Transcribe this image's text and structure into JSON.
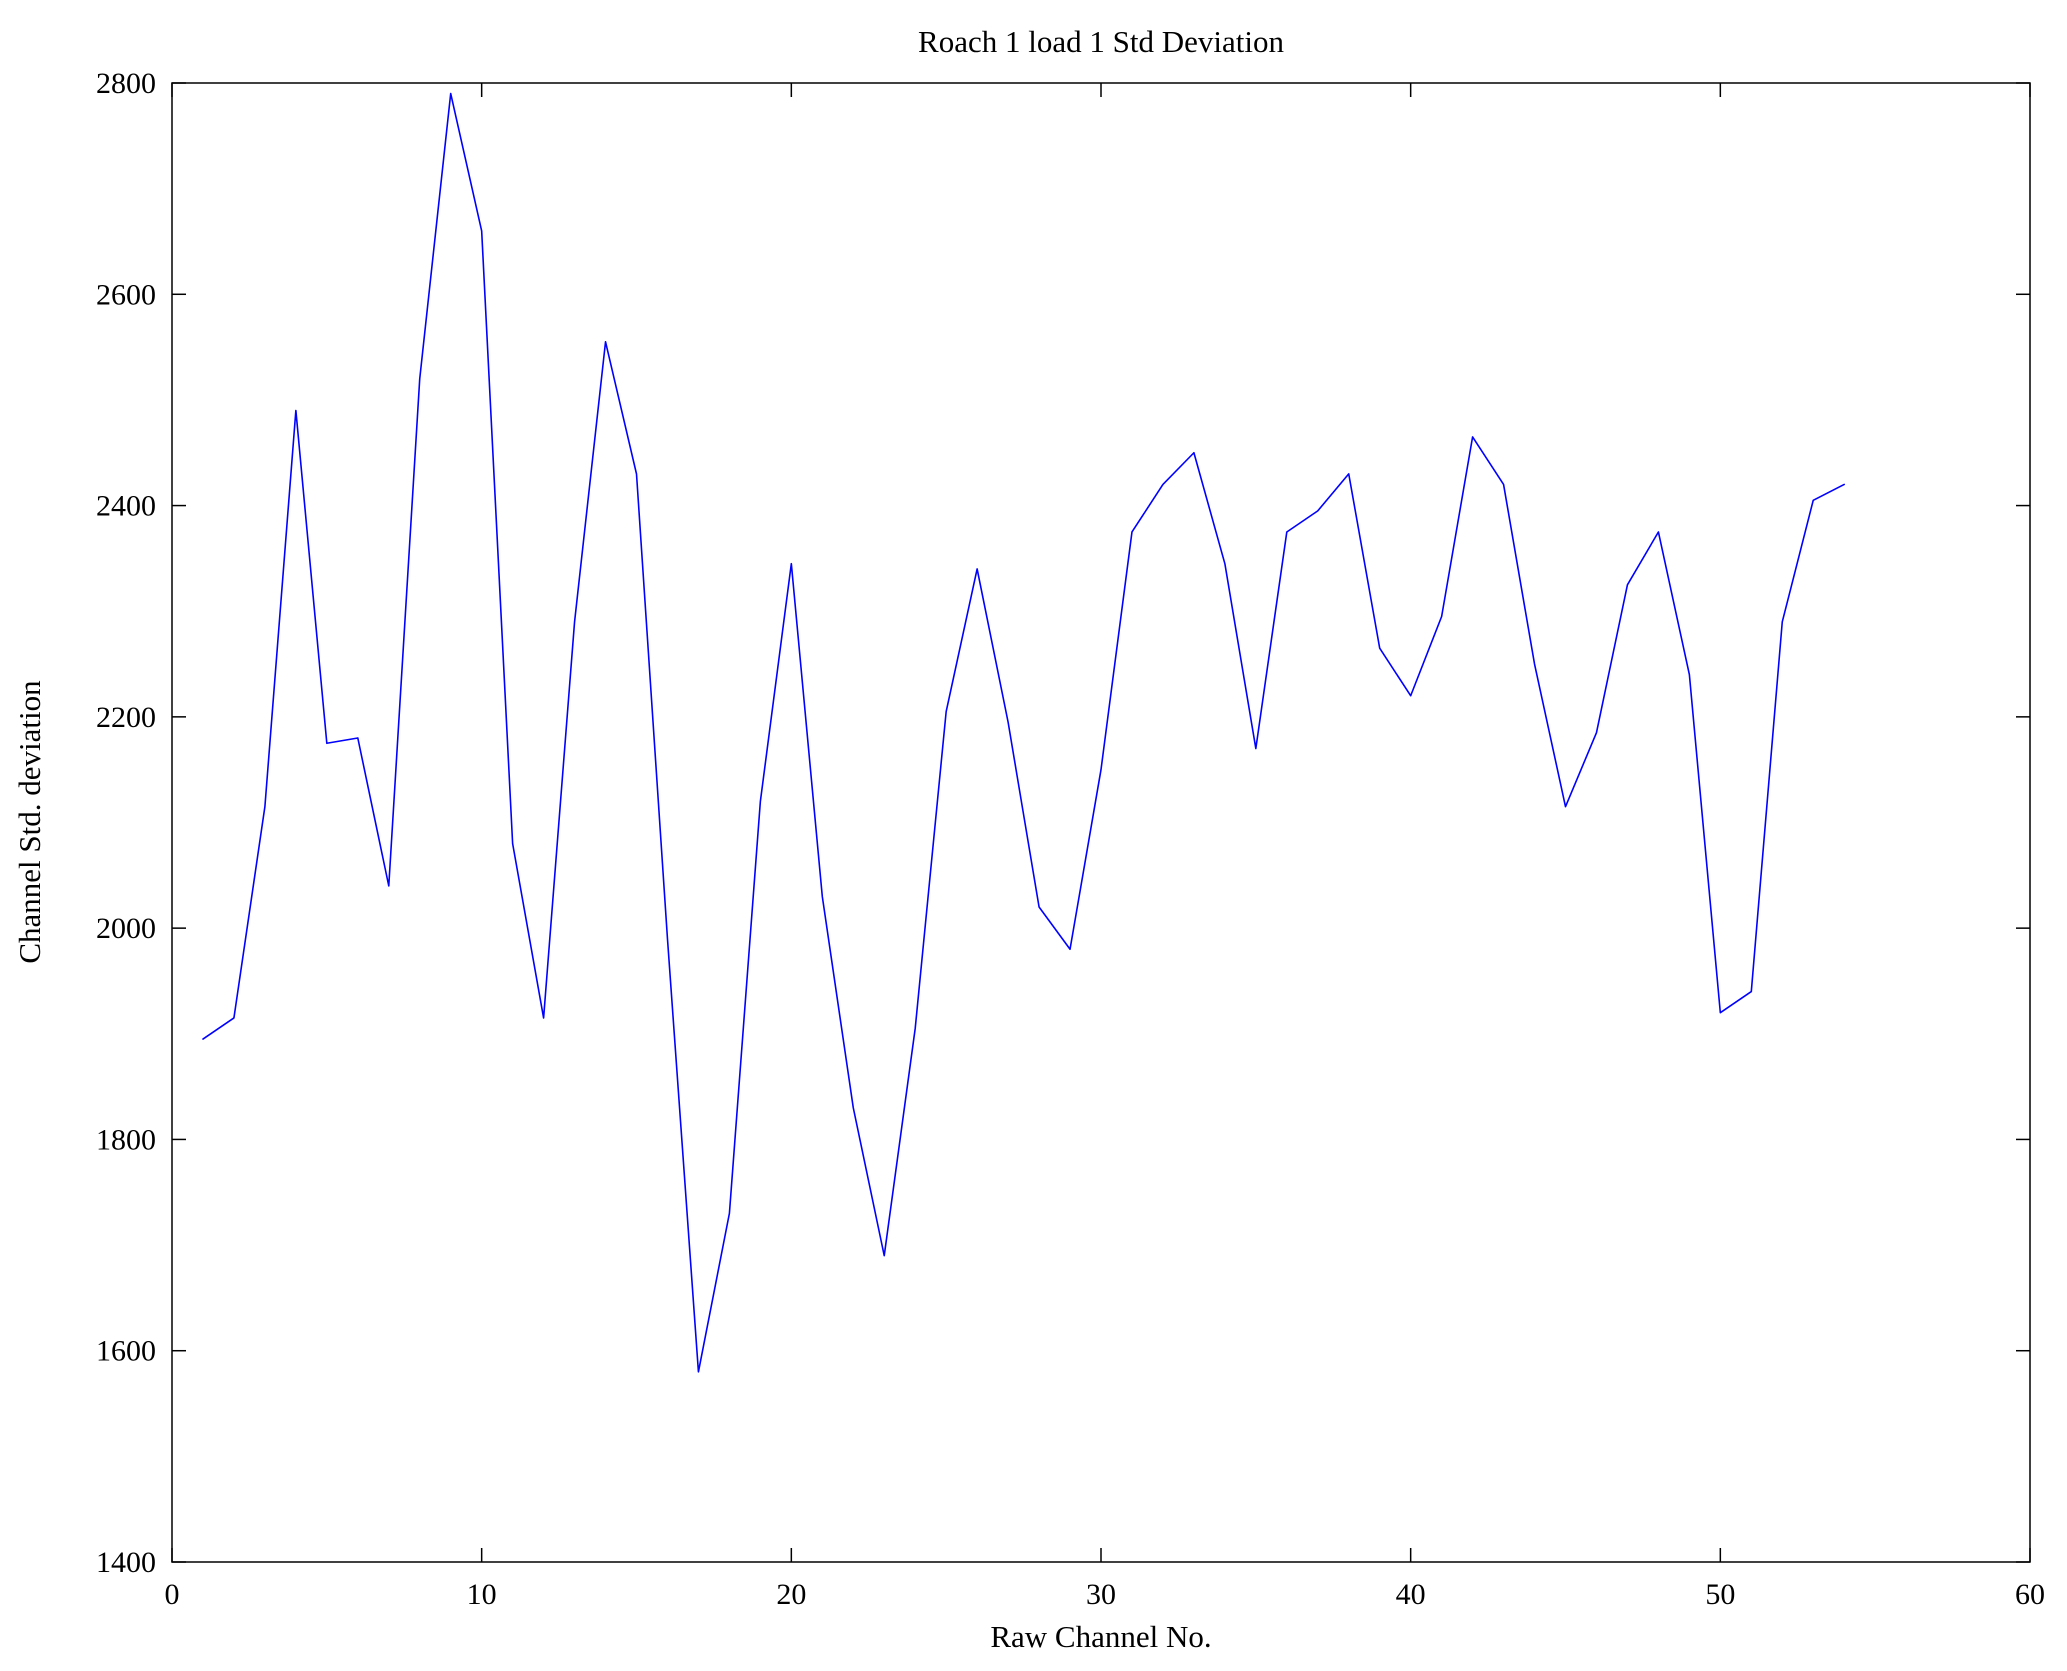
{
  "chart_data": {
    "type": "line",
    "title": "Roach 1 load 1 Std Deviation",
    "xlabel": "Raw Channel No.",
    "ylabel": "Channel Std. deviation",
    "xlim": [
      0,
      60
    ],
    "ylim": [
      1400,
      2800
    ],
    "xticks": [
      0,
      10,
      20,
      30,
      40,
      50,
      60
    ],
    "yticks": [
      1400,
      1600,
      1800,
      2000,
      2200,
      2400,
      2600,
      2800
    ],
    "grid": false,
    "legend": "none",
    "line_color": "#0000ff",
    "axis_color": "#000000",
    "background_color": "#ffffff",
    "x": [
      1,
      2,
      3,
      4,
      5,
      6,
      7,
      8,
      9,
      10,
      11,
      12,
      13,
      14,
      15,
      16,
      17,
      18,
      19,
      20,
      21,
      22,
      23,
      24,
      25,
      26,
      27,
      28,
      29,
      30,
      31,
      32,
      33,
      34,
      35,
      36,
      37,
      38,
      39,
      40,
      41,
      42,
      43,
      44,
      45,
      46,
      47,
      48,
      49,
      50,
      51,
      52,
      53,
      54
    ],
    "y": [
      1895,
      1915,
      2115,
      2490,
      2175,
      2180,
      2040,
      2520,
      2790,
      2660,
      2080,
      1915,
      2290,
      2555,
      2430,
      1990,
      1580,
      1730,
      2120,
      2345,
      2030,
      1830,
      1690,
      1905,
      2205,
      2340,
      2195,
      2020,
      1980,
      2150,
      2375,
      2420,
      2450,
      2345,
      2170,
      2375,
      2395,
      2430,
      2265,
      2220,
      2295,
      2465,
      2420,
      2250,
      2115,
      2185,
      2325,
      2375,
      2240,
      1920,
      1940,
      2290,
      2405,
      2420
    ]
  }
}
